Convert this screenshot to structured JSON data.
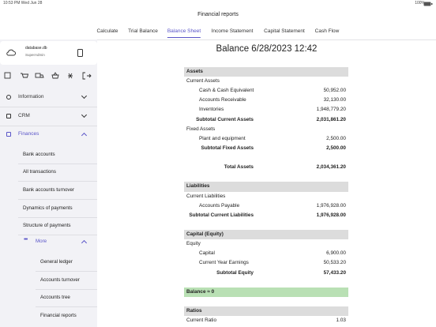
{
  "status_bar": {
    "time": "10:53 PM  Wed Jun 28",
    "battery": "100%"
  },
  "header": {
    "title": "Financial reports",
    "tabs": [
      "Calculate",
      "Trial Balance",
      "Balance Sheet",
      "Income Statement",
      "Capital Statement",
      "Cash Flow"
    ],
    "active_tab": 2
  },
  "sidebar": {
    "database": "database.db",
    "user": "SuperAdmin",
    "menu": [
      {
        "label": "Information"
      },
      {
        "label": "CRM"
      },
      {
        "label": "Finances",
        "active": true
      }
    ],
    "finances_items": [
      "Bank accounts",
      "All transactions",
      "Bank accounts turnover",
      "Dynamics of payments",
      "Structure of payments"
    ],
    "more": "More",
    "more_items": [
      "General ledger",
      "Accounts turnover",
      "Accounts tree",
      "Financial reports"
    ]
  },
  "report": {
    "title": "Balance  6/28/2023 12:42",
    "rows": [
      {
        "style": "header",
        "label": "Assets"
      },
      {
        "style": "group",
        "label": "Current Assets"
      },
      {
        "style": "item",
        "label": "Cash & Cash Equivalent",
        "value": "50,952.00"
      },
      {
        "style": "item",
        "label": "Accounts Receivable",
        "value": "32,130.00"
      },
      {
        "style": "item",
        "label": "Inventories",
        "value": "1,948,779.20"
      },
      {
        "style": "subtotal",
        "label": "Subtotal Current Assets",
        "value": "2,031,861.20"
      },
      {
        "style": "group",
        "label": "Fixed Assets"
      },
      {
        "style": "item",
        "label": "Plant and equipment",
        "value": "2,500.00"
      },
      {
        "style": "subtotal",
        "label": "Subtotal Fixed Assets",
        "value": "2,500.00"
      },
      {
        "style": "spacer"
      },
      {
        "style": "subtotal",
        "label": "Total Assets",
        "value": "2,034,361.20"
      },
      {
        "style": "spacer"
      },
      {
        "style": "header",
        "label": "Liabilities"
      },
      {
        "style": "group",
        "label": "Current Liabilities"
      },
      {
        "style": "item",
        "label": "Accounts Payable",
        "value": "1,976,928.00"
      },
      {
        "style": "subtotal",
        "label": "Subtotal Current Liabilities",
        "value": "1,976,928.00"
      },
      {
        "style": "spacer"
      },
      {
        "style": "header",
        "label": "Capital (Equity)"
      },
      {
        "style": "group",
        "label": "Equity"
      },
      {
        "style": "item",
        "label": "Capital",
        "value": "6,900.00"
      },
      {
        "style": "item",
        "label": "Current Year Earnings",
        "value": "50,533.20"
      },
      {
        "style": "subtotal",
        "label": "Subtotal Equity",
        "value": "57,433.20"
      },
      {
        "style": "spacer"
      },
      {
        "style": "highlight",
        "label": "Balance ≈ 0"
      },
      {
        "style": "spacer"
      },
      {
        "style": "header",
        "label": "Ratios"
      },
      {
        "style": "group",
        "label": "Current Ratio",
        "value": "1.03"
      }
    ]
  }
}
